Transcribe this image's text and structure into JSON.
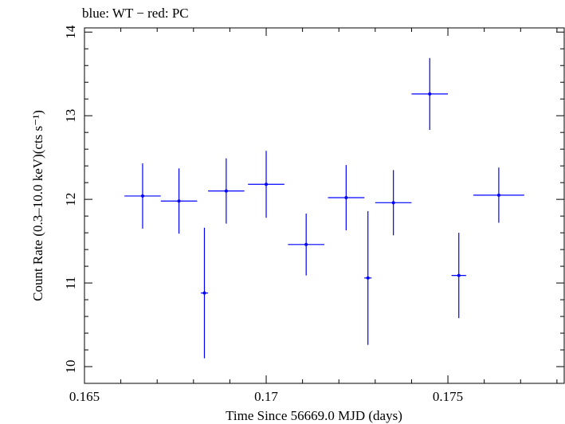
{
  "chart_data": {
    "type": "scatter",
    "title": "blue: WT − red: PC",
    "xlabel": "Time Since 56669.0 MJD (days)",
    "ylabel": "Count Rate (0.3–10.0 keV)(cts s⁻¹)",
    "xlim": [
      0.165,
      0.1782
    ],
    "ylim": [
      9.8,
      14.05
    ],
    "xticks": [
      0.165,
      0.17,
      0.175
    ],
    "xtick_labels": [
      "0.165",
      "0.17",
      "0.175"
    ],
    "yticks": [
      10,
      11,
      12,
      13,
      14
    ],
    "ytick_labels": [
      "10",
      "11",
      "12",
      "13",
      "14"
    ],
    "grid": false,
    "series": [
      {
        "mode": "WT",
        "color": "#0000ff",
        "points": [
          {
            "x": 0.1666,
            "xerr_lo": 0.0005,
            "xerr_hi": 0.0005,
            "y": 12.04,
            "yerr_lo": 0.39,
            "yerr_hi": 0.39
          },
          {
            "x": 0.1676,
            "xerr_lo": 0.0005,
            "xerr_hi": 0.0005,
            "y": 11.98,
            "yerr_lo": 0.39,
            "yerr_hi": 0.39
          },
          {
            "x": 0.1683,
            "xerr_lo": 0.0001,
            "xerr_hi": 0.0001,
            "y": 10.88,
            "yerr_lo": 0.78,
            "yerr_hi": 0.78
          },
          {
            "x": 0.1689,
            "xerr_lo": 0.0005,
            "xerr_hi": 0.0005,
            "y": 12.1,
            "yerr_lo": 0.39,
            "yerr_hi": 0.39
          },
          {
            "x": 0.17,
            "xerr_lo": 0.0005,
            "xerr_hi": 0.0005,
            "y": 12.18,
            "yerr_lo": 0.4,
            "yerr_hi": 0.4
          },
          {
            "x": 0.1711,
            "xerr_lo": 0.0005,
            "xerr_hi": 0.0005,
            "y": 11.46,
            "yerr_lo": 0.37,
            "yerr_hi": 0.37
          },
          {
            "x": 0.1722,
            "xerr_lo": 0.0005,
            "xerr_hi": 0.0005,
            "y": 12.02,
            "yerr_lo": 0.39,
            "yerr_hi": 0.39
          },
          {
            "x": 0.1728,
            "xerr_lo": 0.0001,
            "xerr_hi": 0.0001,
            "y": 11.06,
            "yerr_lo": 0.8,
            "yerr_hi": 0.8
          },
          {
            "x": 0.1735,
            "xerr_lo": 0.0005,
            "xerr_hi": 0.0005,
            "y": 11.96,
            "yerr_lo": 0.39,
            "yerr_hi": 0.39
          },
          {
            "x": 0.1745,
            "xerr_lo": 0.0005,
            "xerr_hi": 0.0005,
            "y": 13.26,
            "yerr_lo": 0.43,
            "yerr_hi": 0.43
          },
          {
            "x": 0.1753,
            "xerr_lo": 0.0002,
            "xerr_hi": 0.0002,
            "y": 11.09,
            "yerr_lo": 0.51,
            "yerr_hi": 0.51
          },
          {
            "x": 0.1764,
            "xerr_lo": 0.0007,
            "xerr_hi": 0.0007,
            "y": 12.05,
            "yerr_lo": 0.33,
            "yerr_hi": 0.33
          }
        ]
      }
    ]
  }
}
